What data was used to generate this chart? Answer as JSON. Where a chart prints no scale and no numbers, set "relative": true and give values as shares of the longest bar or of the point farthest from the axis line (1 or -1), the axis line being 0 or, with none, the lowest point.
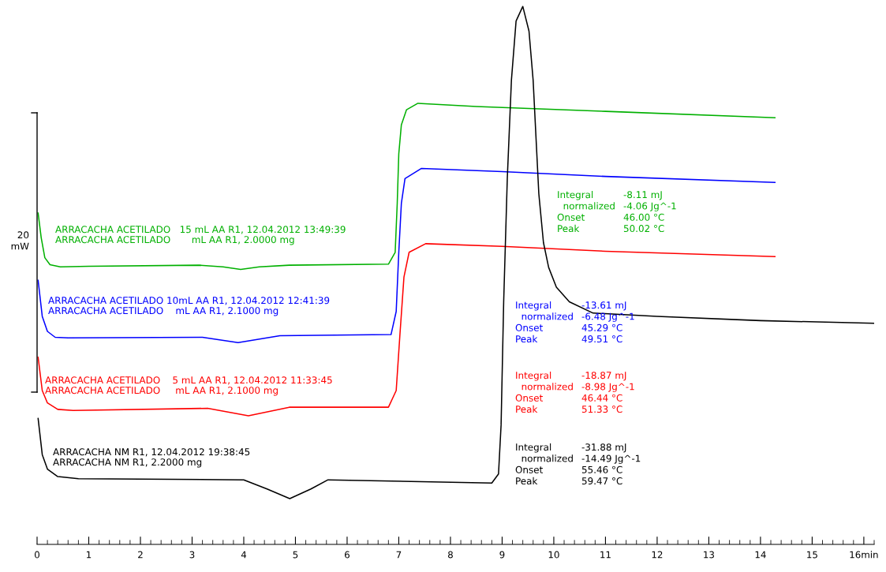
{
  "chart_data": {
    "type": "line",
    "relative": true,
    "xlim": [
      0,
      16.2
    ],
    "xticks": [
      0,
      1,
      2,
      3,
      4,
      5,
      6,
      7,
      8,
      9,
      10,
      11,
      12,
      13,
      14,
      15,
      {
        "value": 16,
        "label": "16min"
      }
    ],
    "series": [
      {
        "color": "#00b000",
        "x": [
          0.02,
          0.08,
          0.15,
          0.25,
          0.45,
          1,
          3.14,
          3.6,
          3.94,
          4.3,
          4.88,
          6.8,
          6.93,
          6.97,
          7.0,
          7.05,
          7.15,
          7.37,
          8.5,
          11,
          14.28
        ],
        "values": [
          0.616,
          0.57,
          0.533,
          0.52,
          0.516,
          0.517,
          0.519,
          0.516,
          0.511,
          0.516,
          0.519,
          0.521,
          0.543,
          0.634,
          0.726,
          0.78,
          0.808,
          0.82,
          0.814,
          0.805,
          0.793
        ]
      },
      {
        "color": "#0000ff",
        "x": [
          0.02,
          0.1,
          0.2,
          0.35,
          0.6,
          3.2,
          3.89,
          4.7,
          6.85,
          6.95,
          7.0,
          7.05,
          7.12,
          7.44,
          9,
          11,
          14.28
        ],
        "values": [
          0.491,
          0.424,
          0.396,
          0.385,
          0.384,
          0.385,
          0.375,
          0.388,
          0.39,
          0.433,
          0.543,
          0.634,
          0.68,
          0.699,
          0.693,
          0.684,
          0.673
        ]
      },
      {
        "color": "#ff0000",
        "x": [
          0.02,
          0.1,
          0.2,
          0.4,
          0.7,
          3.3,
          4.09,
          4.88,
          6.8,
          6.95,
          7.02,
          7.1,
          7.2,
          7.52,
          9,
          11,
          14.28
        ],
        "values": [
          0.348,
          0.286,
          0.263,
          0.251,
          0.249,
          0.253,
          0.239,
          0.255,
          0.255,
          0.286,
          0.387,
          0.497,
          0.543,
          0.559,
          0.554,
          0.545,
          0.535
        ]
      },
      {
        "color": "#000000",
        "x": [
          0.02,
          0.1,
          0.2,
          0.4,
          0.8,
          4.0,
          4.45,
          4.89,
          5.3,
          5.63,
          8.8,
          8.93,
          8.98,
          9.03,
          9.1,
          9.18,
          9.27,
          9.4,
          9.52,
          9.6,
          9.71,
          9.8,
          9.9,
          10.05,
          10.3,
          10.76,
          12,
          14,
          16.2
        ],
        "values": [
          0.234,
          0.167,
          0.14,
          0.126,
          0.122,
          0.12,
          0.103,
          0.085,
          0.103,
          0.12,
          0.114,
          0.131,
          0.222,
          0.451,
          0.68,
          0.863,
          0.973,
          1.0,
          0.954,
          0.863,
          0.652,
          0.561,
          0.515,
          0.478,
          0.451,
          0.43,
          0.424,
          0.416,
          0.411
        ]
      }
    ],
    "annotations": [
      "20\nmW",
      "ARRACACHA ACETILADO   15 mL AA R1, 12.04.2012 13:49:39\nARRACACHA ACETILADO       mL AA R1, 2.0000 mg",
      "ARRACACHA ACETILADO 10mL AA R1, 12.04.2012 12:41:39\nARRACACHA ACETILADO    mL AA R1, 2.1000 mg",
      "ARRACACHA ACETILADO    5 mL AA R1, 12.04.2012 11:33:45\nARRACACHA ACETILADO     mL AA R1, 2.1000 mg",
      "ARRACACHA NM R1, 12.04.2012 19:38:45\nARRACACHA NM R1, 2.2000 mg",
      "Integral\n  normalized\nOnset\nPeak",
      "-8.11 mJ\n-4.06 Jg^-1\n46.00 °C\n50.02 °C",
      "Integral\n  normalized\nOnset\nPeak",
      "-13.61 mJ\n-6.48 Jg^-1\n45.29 °C\n49.51 °C",
      "Integral\n  normalized\nOnset\nPeak",
      "-18.87 mJ\n-8.98 Jg^-1\n46.44 °C\n51.33 °C",
      "Integral\n  normalized\nOnset\nPeak",
      "-31.88 mJ\n-14.49 Jg^-1\n55.46 °C\n59.47 °C"
    ]
  }
}
